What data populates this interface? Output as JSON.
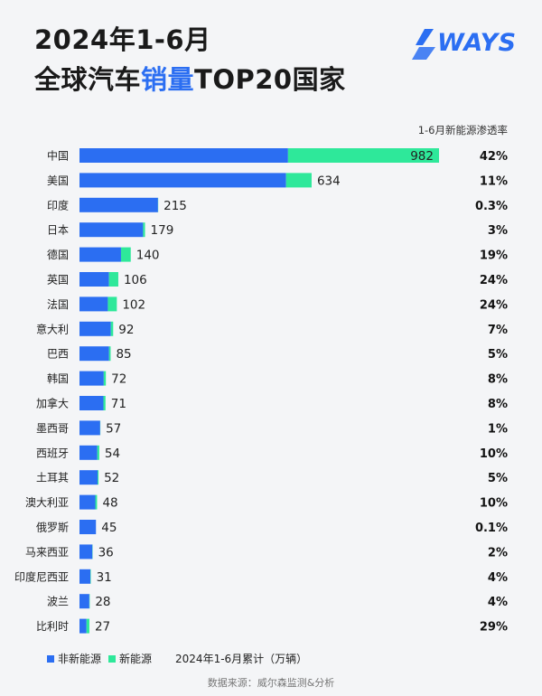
{
  "header": {
    "title_line1": "2024年1-6月",
    "title_line2_pre": "全球汽车",
    "title_line2_hl": "销量",
    "title_line2_post": "TOP20国家",
    "logo_text": "WAYS",
    "penetration_header": "1-6月新能源渗透率"
  },
  "colors": {
    "non_nev": "#2b6ef2",
    "nev": "#2ee89a",
    "accent": "#2b6ef2"
  },
  "chart_data": {
    "type": "bar",
    "orientation": "horizontal",
    "stacked": true,
    "categories": [
      "中国",
      "美国",
      "印度",
      "日本",
      "德国",
      "英国",
      "法国",
      "意大利",
      "巴西",
      "韩国",
      "加拿大",
      "墨西哥",
      "西班牙",
      "土耳其",
      "澳大利亚",
      "俄罗斯",
      "马来西亚",
      "印度尼西亚",
      "波兰",
      "比利时"
    ],
    "totals": [
      982,
      634,
      215,
      179,
      140,
      106,
      102,
      92,
      85,
      72,
      71,
      57,
      54,
      52,
      48,
      45,
      36,
      31,
      28,
      27
    ],
    "penetration": [
      "42%",
      "11%",
      "0.3%",
      "3%",
      "19%",
      "24%",
      "24%",
      "7%",
      "5%",
      "8%",
      "8%",
      "1%",
      "10%",
      "5%",
      "10%",
      "0.1%",
      "2%",
      "4%",
      "4%",
      "29%"
    ],
    "series": [
      {
        "name": "非新能源",
        "color": "#2b6ef2"
      },
      {
        "name": "新能源",
        "color": "#2ee89a"
      }
    ],
    "unit_note": "2024年1-6月累计（万辆）"
  },
  "footer": {
    "source": "数据来源：威尔森监测&分析"
  }
}
